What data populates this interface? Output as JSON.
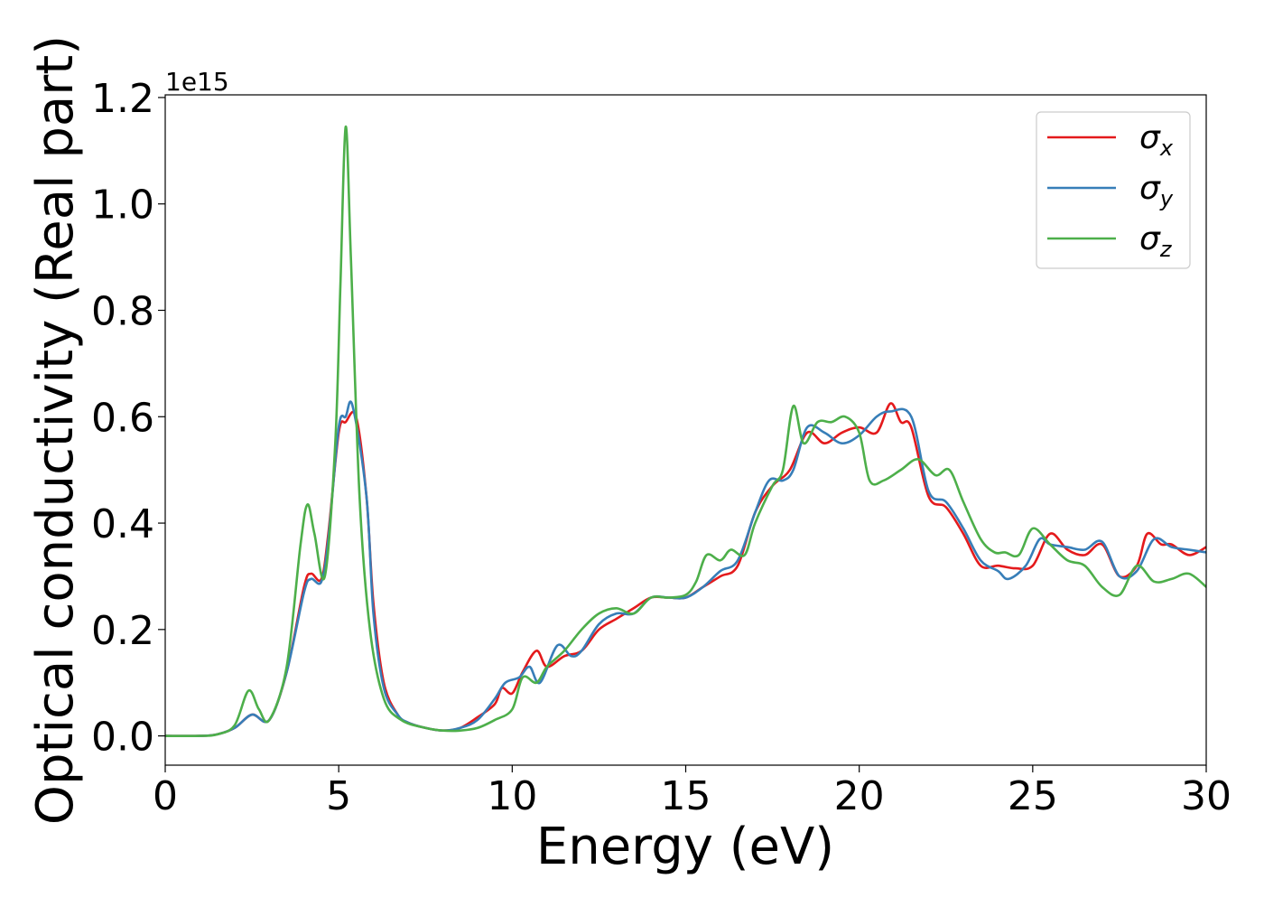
{
  "chart_data": {
    "type": "line",
    "xlabel": "Energy (eV)",
    "ylabel": "Optical conductivity (Real part)",
    "offset_text": "1e15",
    "xlim": [
      0,
      30
    ],
    "ylim": [
      -0.055,
      1.205
    ],
    "x_ticks": [
      0,
      5,
      10,
      15,
      20,
      25,
      30
    ],
    "x_tick_labels": [
      "0",
      "5",
      "10",
      "15",
      "20",
      "25",
      "30"
    ],
    "y_ticks": [
      0.0,
      0.2,
      0.4,
      0.6,
      0.8,
      1.0,
      1.2
    ],
    "y_tick_labels": [
      "0.0",
      "0.2",
      "0.4",
      "0.6",
      "0.8",
      "1.0",
      "1.2"
    ],
    "y_unit_scale": "1e15",
    "grid": false,
    "legend_position": "upper-right",
    "series": [
      {
        "name": "σx",
        "symbol": "σ",
        "subscript": "x",
        "color": "#e41a1c",
        "points": [
          [
            0,
            0.0
          ],
          [
            1,
            0.0
          ],
          [
            1.5,
            0.003
          ],
          [
            2,
            0.015
          ],
          [
            2.5,
            0.04
          ],
          [
            3,
            0.03
          ],
          [
            3.5,
            0.12
          ],
          [
            4,
            0.28
          ],
          [
            4.2,
            0.305
          ],
          [
            4.5,
            0.295
          ],
          [
            4.7,
            0.38
          ],
          [
            5,
            0.57
          ],
          [
            5.2,
            0.59
          ],
          [
            5.5,
            0.6
          ],
          [
            5.8,
            0.45
          ],
          [
            6,
            0.25
          ],
          [
            6.3,
            0.1
          ],
          [
            6.7,
            0.04
          ],
          [
            7,
            0.025
          ],
          [
            7.5,
            0.015
          ],
          [
            8,
            0.01
          ],
          [
            8.5,
            0.015
          ],
          [
            9,
            0.035
          ],
          [
            9.5,
            0.06
          ],
          [
            9.7,
            0.09
          ],
          [
            10,
            0.08
          ],
          [
            10.3,
            0.12
          ],
          [
            10.7,
            0.16
          ],
          [
            11,
            0.13
          ],
          [
            11.5,
            0.15
          ],
          [
            12,
            0.16
          ],
          [
            12.5,
            0.2
          ],
          [
            13,
            0.22
          ],
          [
            13.5,
            0.24
          ],
          [
            14,
            0.26
          ],
          [
            14.5,
            0.26
          ],
          [
            15,
            0.26
          ],
          [
            15.5,
            0.28
          ],
          [
            16,
            0.3
          ],
          [
            16.5,
            0.32
          ],
          [
            17,
            0.42
          ],
          [
            17.5,
            0.47
          ],
          [
            18,
            0.5
          ],
          [
            18.5,
            0.57
          ],
          [
            19,
            0.55
          ],
          [
            19.5,
            0.57
          ],
          [
            20,
            0.58
          ],
          [
            20.5,
            0.57
          ],
          [
            20.9,
            0.625
          ],
          [
            21.2,
            0.59
          ],
          [
            21.5,
            0.58
          ],
          [
            22,
            0.45
          ],
          [
            22.5,
            0.43
          ],
          [
            23,
            0.38
          ],
          [
            23.5,
            0.32
          ],
          [
            24,
            0.32
          ],
          [
            24.5,
            0.315
          ],
          [
            25,
            0.32
          ],
          [
            25.5,
            0.38
          ],
          [
            26,
            0.35
          ],
          [
            26.5,
            0.34
          ],
          [
            27,
            0.36
          ],
          [
            27.5,
            0.3
          ],
          [
            28,
            0.32
          ],
          [
            28.3,
            0.38
          ],
          [
            28.7,
            0.36
          ],
          [
            29,
            0.36
          ],
          [
            29.5,
            0.34
          ],
          [
            30,
            0.355
          ]
        ]
      },
      {
        "name": "σy",
        "symbol": "σ",
        "subscript": "y",
        "color": "#377eb8",
        "points": [
          [
            0,
            0.0
          ],
          [
            1,
            0.0
          ],
          [
            1.5,
            0.003
          ],
          [
            2,
            0.015
          ],
          [
            2.5,
            0.04
          ],
          [
            3,
            0.03
          ],
          [
            3.5,
            0.12
          ],
          [
            4,
            0.27
          ],
          [
            4.2,
            0.295
          ],
          [
            4.5,
            0.29
          ],
          [
            4.7,
            0.37
          ],
          [
            5,
            0.58
          ],
          [
            5.2,
            0.6
          ],
          [
            5.4,
            0.62
          ],
          [
            5.8,
            0.45
          ],
          [
            6,
            0.23
          ],
          [
            6.3,
            0.09
          ],
          [
            6.7,
            0.04
          ],
          [
            7,
            0.025
          ],
          [
            7.5,
            0.015
          ],
          [
            8,
            0.01
          ],
          [
            8.5,
            0.015
          ],
          [
            9,
            0.03
          ],
          [
            9.5,
            0.07
          ],
          [
            9.8,
            0.1
          ],
          [
            10.2,
            0.11
          ],
          [
            10.5,
            0.13
          ],
          [
            10.8,
            0.1
          ],
          [
            11.3,
            0.17
          ],
          [
            11.7,
            0.15
          ],
          [
            12,
            0.16
          ],
          [
            12.5,
            0.21
          ],
          [
            13,
            0.23
          ],
          [
            13.5,
            0.23
          ],
          [
            14,
            0.26
          ],
          [
            14.5,
            0.26
          ],
          [
            15,
            0.26
          ],
          [
            15.5,
            0.28
          ],
          [
            16,
            0.31
          ],
          [
            16.5,
            0.33
          ],
          [
            17,
            0.42
          ],
          [
            17.4,
            0.48
          ],
          [
            17.8,
            0.48
          ],
          [
            18.1,
            0.5
          ],
          [
            18.5,
            0.58
          ],
          [
            19,
            0.57
          ],
          [
            19.5,
            0.55
          ],
          [
            20,
            0.565
          ],
          [
            20.5,
            0.6
          ],
          [
            20.9,
            0.61
          ],
          [
            21.5,
            0.6
          ],
          [
            22,
            0.46
          ],
          [
            22.5,
            0.44
          ],
          [
            23,
            0.39
          ],
          [
            23.5,
            0.33
          ],
          [
            24,
            0.31
          ],
          [
            24.3,
            0.295
          ],
          [
            24.8,
            0.32
          ],
          [
            25.2,
            0.37
          ],
          [
            25.5,
            0.36
          ],
          [
            26,
            0.355
          ],
          [
            26.5,
            0.35
          ],
          [
            27,
            0.365
          ],
          [
            27.5,
            0.3
          ],
          [
            28,
            0.31
          ],
          [
            28.5,
            0.37
          ],
          [
            29,
            0.355
          ],
          [
            29.5,
            0.35
          ],
          [
            30,
            0.345
          ]
        ]
      },
      {
        "name": "σz",
        "symbol": "σ",
        "subscript": "z",
        "color": "#4daf4a",
        "points": [
          [
            0,
            0.0
          ],
          [
            1,
            0.0
          ],
          [
            1.5,
            0.003
          ],
          [
            2,
            0.02
          ],
          [
            2.4,
            0.085
          ],
          [
            2.7,
            0.05
          ],
          [
            3,
            0.03
          ],
          [
            3.5,
            0.13
          ],
          [
            3.9,
            0.36
          ],
          [
            4.1,
            0.435
          ],
          [
            4.3,
            0.38
          ],
          [
            4.6,
            0.3
          ],
          [
            4.9,
            0.55
          ],
          [
            5.05,
            0.85
          ],
          [
            5.2,
            1.145
          ],
          [
            5.35,
            0.9
          ],
          [
            5.6,
            0.45
          ],
          [
            5.9,
            0.2
          ],
          [
            6.3,
            0.07
          ],
          [
            6.8,
            0.03
          ],
          [
            7.5,
            0.015
          ],
          [
            8,
            0.01
          ],
          [
            8.5,
            0.01
          ],
          [
            9,
            0.015
          ],
          [
            9.5,
            0.03
          ],
          [
            10,
            0.05
          ],
          [
            10.3,
            0.11
          ],
          [
            10.7,
            0.1
          ],
          [
            11,
            0.13
          ],
          [
            11.5,
            0.16
          ],
          [
            12,
            0.2
          ],
          [
            12.5,
            0.23
          ],
          [
            13,
            0.24
          ],
          [
            13.5,
            0.23
          ],
          [
            14,
            0.26
          ],
          [
            14.5,
            0.26
          ],
          [
            15,
            0.265
          ],
          [
            15.3,
            0.29
          ],
          [
            15.6,
            0.34
          ],
          [
            16,
            0.33
          ],
          [
            16.3,
            0.35
          ],
          [
            16.7,
            0.34
          ],
          [
            17,
            0.4
          ],
          [
            17.5,
            0.47
          ],
          [
            17.8,
            0.5
          ],
          [
            18.1,
            0.62
          ],
          [
            18.4,
            0.55
          ],
          [
            18.8,
            0.59
          ],
          [
            19.2,
            0.59
          ],
          [
            19.6,
            0.6
          ],
          [
            20,
            0.57
          ],
          [
            20.3,
            0.48
          ],
          [
            20.7,
            0.48
          ],
          [
            21.2,
            0.5
          ],
          [
            21.7,
            0.52
          ],
          [
            22.2,
            0.49
          ],
          [
            22.6,
            0.5
          ],
          [
            23,
            0.44
          ],
          [
            23.5,
            0.37
          ],
          [
            23.9,
            0.345
          ],
          [
            24.2,
            0.345
          ],
          [
            24.6,
            0.34
          ],
          [
            25,
            0.39
          ],
          [
            25.5,
            0.36
          ],
          [
            26,
            0.33
          ],
          [
            26.5,
            0.32
          ],
          [
            27,
            0.28
          ],
          [
            27.5,
            0.265
          ],
          [
            28,
            0.32
          ],
          [
            28.5,
            0.29
          ],
          [
            29,
            0.295
          ],
          [
            29.5,
            0.305
          ],
          [
            30,
            0.28
          ]
        ]
      }
    ]
  }
}
